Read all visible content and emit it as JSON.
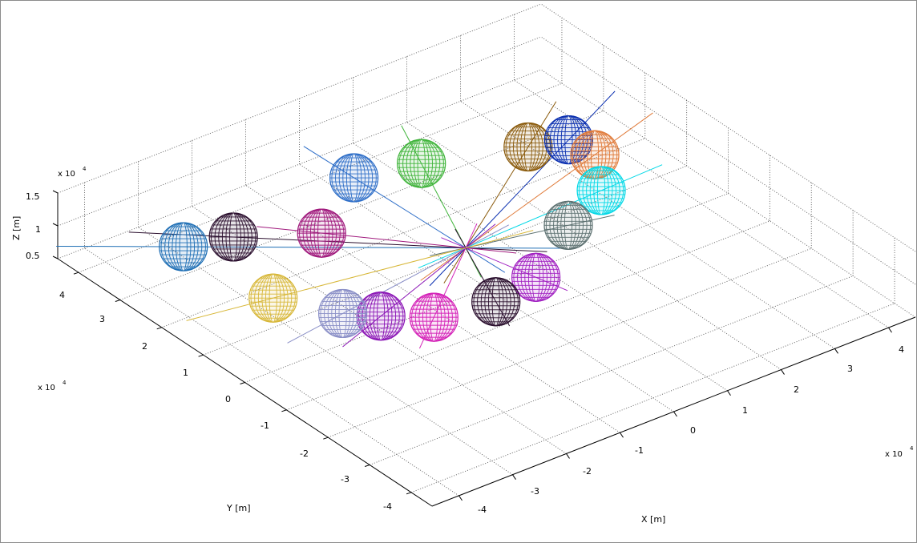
{
  "chart_data": {
    "type": "scatter3d",
    "title": "",
    "xlabel": "X [m]",
    "ylabel": "Y [m]",
    "zlabel": "Z [m]",
    "x_multiplier": "x 10",
    "y_multiplier": "x 10",
    "z_multiplier": "x 10",
    "multiplier_exponent": "4",
    "xlim": [
      -4.5,
      4.5
    ],
    "ylim": [
      -4.5,
      4.5
    ],
    "zlim": [
      0.5,
      1.5
    ],
    "x_ticks": [
      "-4",
      "-3",
      "-2",
      "-1",
      "0",
      "1",
      "2",
      "3",
      "4"
    ],
    "y_ticks": [
      "-4",
      "-3",
      "-2",
      "-1",
      "0",
      "1",
      "2",
      "3",
      "4"
    ],
    "z_ticks": [
      "0.5",
      "1",
      "1.5"
    ],
    "grid": true,
    "spheres": [
      {
        "color": "#1f6fb5",
        "x": -3.4,
        "y": 2.9,
        "z": 1.0
      },
      {
        "color": "#2b0f2e",
        "x": -2.7,
        "y": 2.6,
        "z": 1.05
      },
      {
        "color": "#a01a7d",
        "x": -1.6,
        "y": 1.9,
        "z": 1.05
      },
      {
        "color": "#2f6fc8",
        "x": -0.3,
        "y": 2.8,
        "z": 1.1
      },
      {
        "color": "#3fb43a",
        "x": 0.8,
        "y": 2.6,
        "z": 1.05
      },
      {
        "color": "#8a5a0b",
        "x": 2.4,
        "y": 2.1,
        "z": 1.0
      },
      {
        "color": "#0a2fb0",
        "x": 3.0,
        "y": 1.9,
        "z": 1.0
      },
      {
        "color": "#e07b3a",
        "x": 3.1,
        "y": 1.4,
        "z": 0.95
      },
      {
        "color": "#00d8e6",
        "x": 2.6,
        "y": 0.6,
        "z": 0.9
      },
      {
        "color": "#5d7171",
        "x": 1.6,
        "y": 0.1,
        "z": 0.9
      },
      {
        "color": "#a223c2",
        "x": 0.3,
        "y": -0.8,
        "z": 0.9
      },
      {
        "color": "#2b0f2e",
        "x": -0.6,
        "y": -1.0,
        "z": 0.9
      },
      {
        "color": "#d423b8",
        "x": -1.6,
        "y": -0.8,
        "z": 0.9
      },
      {
        "color": "#8a14b5",
        "x": -2.2,
        "y": -0.3,
        "z": 0.9
      },
      {
        "color": "#8a8fc7",
        "x": -2.6,
        "y": 0.1,
        "z": 0.9
      },
      {
        "color": "#d8b83a",
        "x": -3.2,
        "y": 1.0,
        "z": 0.95
      }
    ],
    "trajectories_count": 16
  }
}
